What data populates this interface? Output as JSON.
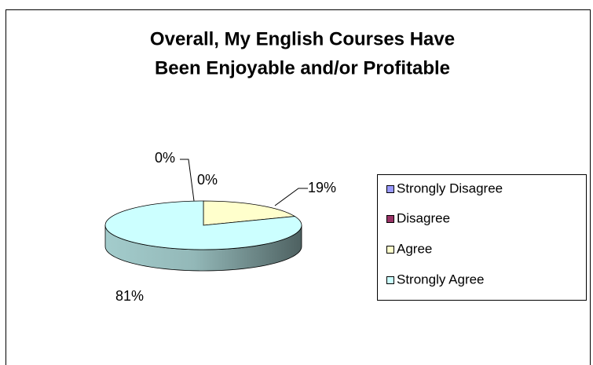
{
  "chart_data": {
    "type": "pie3d",
    "title": [
      "Overall, My English Courses Have",
      "Been Enjoyable and/or Profitable"
    ],
    "categories": [
      "Strongly Disagree",
      "Disagree",
      "Agree",
      "Strongly Agree"
    ],
    "values": [
      0,
      0,
      19,
      81
    ],
    "value_labels": [
      "0%",
      "0%",
      "19%",
      "81%"
    ],
    "colors": [
      "#9999ff",
      "#993366",
      "#ffffcc",
      "#ccffff"
    ],
    "legend": "right"
  }
}
